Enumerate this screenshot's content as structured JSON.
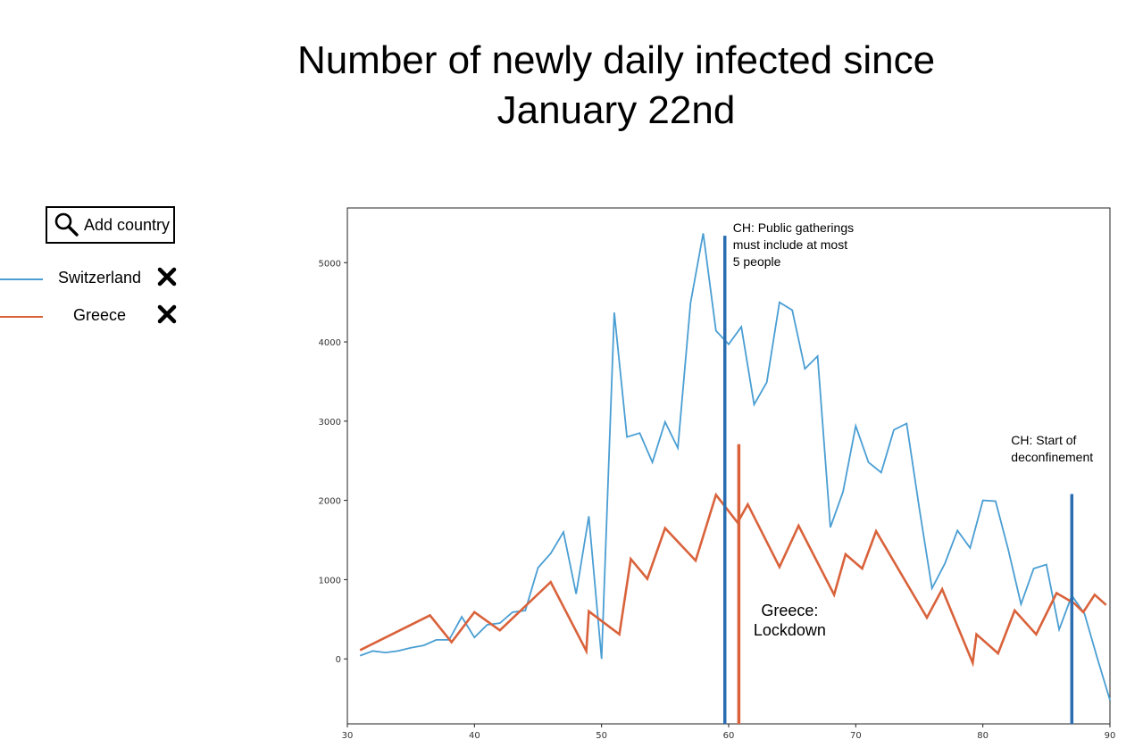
{
  "title_lines": [
    "Number of newly daily infected since",
    "January 22nd"
  ],
  "search": {
    "label": "Add country",
    "icon": "search-icon"
  },
  "legend": [
    {
      "name": "Switzerland",
      "color": "#4a9ed3",
      "remove_icon": "close-icon"
    },
    {
      "name": "Greece",
      "color": "#d9623b",
      "remove_icon": "close-icon"
    }
  ],
  "chart_data": {
    "type": "line",
    "title": "Number of newly daily infected since January 22nd",
    "xlabel": "",
    "ylabel": "",
    "xlim": [
      30,
      90
    ],
    "ylim": [
      -820,
      5690
    ],
    "xticks": [
      30,
      40,
      50,
      60,
      70,
      80,
      90
    ],
    "yticks": [
      0,
      1000,
      2000,
      3000,
      4000,
      5000
    ],
    "grid": false,
    "legend_placement": "left",
    "series": [
      {
        "name": "Switzerland",
        "color": "#4a9ed3",
        "x": [
          31,
          32,
          33,
          34,
          35,
          36,
          37,
          38,
          39,
          40,
          41,
          42,
          43,
          44,
          45,
          46,
          47,
          48,
          49,
          50,
          51,
          52,
          53,
          54,
          55,
          56,
          57,
          58,
          59,
          60,
          61,
          62,
          63,
          64,
          65,
          66,
          67,
          68,
          69,
          70,
          71,
          72,
          73,
          74,
          75,
          76,
          77,
          78,
          79,
          80,
          81,
          82,
          83,
          84,
          85,
          86,
          87,
          88,
          89,
          90
        ],
        "y": [
          40,
          100,
          80,
          100,
          140,
          170,
          240,
          240,
          530,
          270,
          430,
          450,
          590,
          610,
          1150,
          1330,
          1600,
          820,
          1800,
          0,
          4370,
          2800,
          2850,
          2480,
          2990,
          2660,
          4490,
          5370,
          4140,
          3970,
          4190,
          3210,
          3490,
          4500,
          4400,
          3660,
          3820,
          1660,
          2110,
          2940,
          2480,
          2350,
          2890,
          2970,
          1900,
          890,
          1200,
          1620,
          1400,
          2000,
          1990,
          1380,
          690,
          1140,
          1190,
          370,
          800,
          570,
          10,
          -520
        ]
      },
      {
        "name": "Greece",
        "color": "#d9623b",
        "x": [
          31,
          36.5,
          38.2,
          40,
          42,
          46,
          48.8,
          49,
          51.4,
          52.3,
          53.6,
          55,
          57.4,
          59,
          60.7,
          61.5,
          64,
          65.5,
          68.3,
          69.2,
          70.5,
          71.6,
          75.6,
          76.8,
          79.2,
          79.5,
          81.2,
          82.5,
          84.2,
          85.8,
          87.2,
          87.9,
          88.8,
          89.7
        ],
        "y": [
          110,
          550,
          210,
          590,
          360,
          970,
          100,
          600,
          310,
          1260,
          1010,
          1650,
          1240,
          2070,
          1720,
          1950,
          1160,
          1680,
          810,
          1320,
          1140,
          1610,
          520,
          880,
          -50,
          310,
          70,
          610,
          310,
          830,
          700,
          590,
          810,
          680
        ]
      }
    ],
    "vertical_markers": [
      {
        "x": 59.7,
        "y_top": 5340,
        "color": "#2a6db0",
        "label_lines": [
          "CH: Public gatherings",
          "must include at most",
          "5 people"
        ]
      },
      {
        "x": 60.8,
        "y_top": 2710,
        "color": "#d9623b",
        "label_lines": [
          "Greece:",
          "Lockdown"
        ]
      },
      {
        "x": 87,
        "y_top": 2080,
        "color": "#2a6db0",
        "label_lines": [
          "CH: Start of",
          "deconfinement"
        ]
      }
    ]
  }
}
